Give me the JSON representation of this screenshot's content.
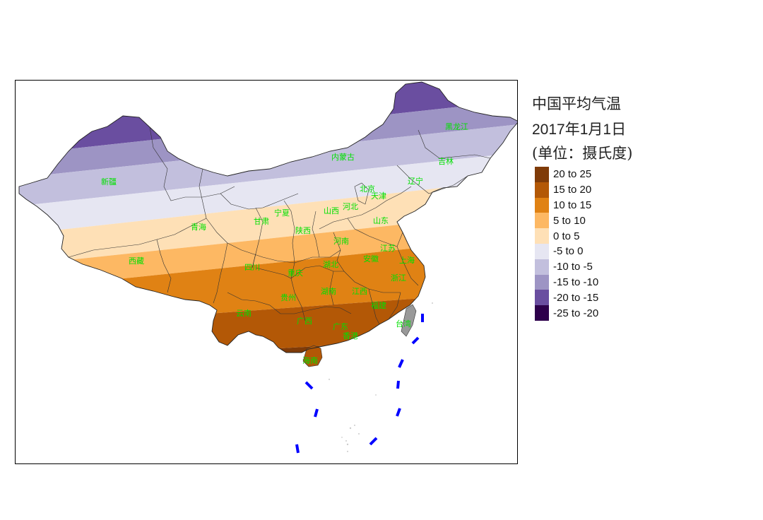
{
  "legend": {
    "title_line1": "中国平均气温",
    "title_line2": "2017年1月1日",
    "title_line3": "(单位：摄氏度)",
    "items": [
      {
        "label": "20 to 25",
        "color": "#7f3b08"
      },
      {
        "label": "15 to 20",
        "color": "#b35806"
      },
      {
        "label": "10 to 15",
        "color": "#e08214"
      },
      {
        "label": "5 to 10",
        "color": "#fdb863"
      },
      {
        "label": "0 to 5",
        "color": "#fee0b6"
      },
      {
        "label": "-5 to 0",
        "color": "#e6e6f2"
      },
      {
        "label": "-10 to -5",
        "color": "#c2bfdd"
      },
      {
        "label": "-15 to -10",
        "color": "#9d94c4"
      },
      {
        "label": "-20 to -15",
        "color": "#6a4ea0"
      },
      {
        "label": "-25 to -20",
        "color": "#2d004b"
      }
    ]
  },
  "map": {
    "province_label_color": "#00e000",
    "nine_dash_line_color": "#0000ff",
    "provinces": [
      "黑龙江",
      "吉林",
      "辽宁",
      "内蒙古",
      "北京",
      "天津",
      "河北",
      "山西",
      "山东",
      "新疆",
      "青海",
      "甘肃",
      "宁夏",
      "陕西",
      "河南",
      "江苏",
      "上海",
      "安徽",
      "湖北",
      "浙江",
      "西藏",
      "四川",
      "重庆",
      "湖南",
      "江西",
      "福建",
      "台湾",
      "贵州",
      "云南",
      "广西",
      "广东",
      "香港",
      "海南"
    ]
  }
}
